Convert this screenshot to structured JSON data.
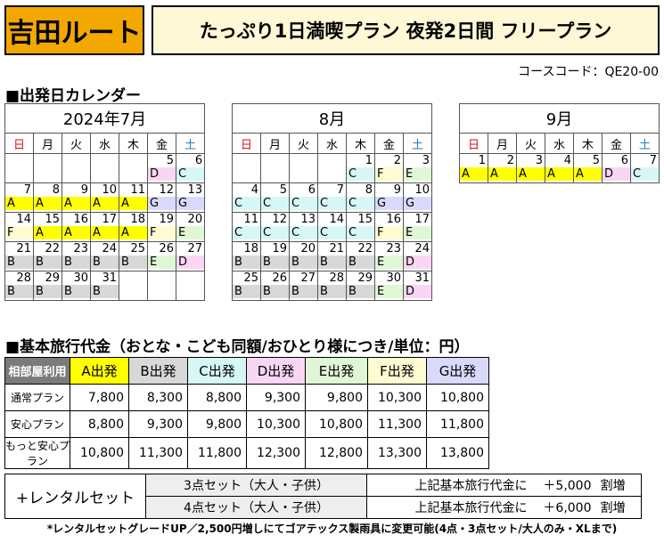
{
  "header": {
    "route": "吉田ルート",
    "plan_title": "たっぷり1日満喫プラン 夜発2日間 フリープラン",
    "course_code": "コースコード：QE20-00"
  },
  "calendar_heading": "■出発日カレンダー",
  "weekdays": [
    "日",
    "月",
    "火",
    "水",
    "木",
    "金",
    "土"
  ],
  "calendars": [
    {
      "title": "2024年7月",
      "weeks": [
        [
          {
            "d": "",
            "c": ""
          },
          {
            "d": "",
            "c": ""
          },
          {
            "d": "",
            "c": ""
          },
          {
            "d": "",
            "c": ""
          },
          {
            "d": "",
            "c": ""
          },
          {
            "d": "5",
            "c": "D"
          },
          {
            "d": "6",
            "c": "C"
          }
        ],
        [
          {
            "d": "7",
            "c": "A"
          },
          {
            "d": "8",
            "c": "A"
          },
          {
            "d": "9",
            "c": "A"
          },
          {
            "d": "10",
            "c": "A"
          },
          {
            "d": "11",
            "c": "A"
          },
          {
            "d": "12",
            "c": "G"
          },
          {
            "d": "13",
            "c": "G"
          }
        ],
        [
          {
            "d": "14",
            "c": "F"
          },
          {
            "d": "15",
            "c": "A"
          },
          {
            "d": "16",
            "c": "A"
          },
          {
            "d": "17",
            "c": "A"
          },
          {
            "d": "18",
            "c": "A"
          },
          {
            "d": "19",
            "c": "F"
          },
          {
            "d": "20",
            "c": "E"
          }
        ],
        [
          {
            "d": "21",
            "c": "B"
          },
          {
            "d": "22",
            "c": "B"
          },
          {
            "d": "23",
            "c": "B"
          },
          {
            "d": "24",
            "c": "B"
          },
          {
            "d": "25",
            "c": "B"
          },
          {
            "d": "26",
            "c": "E"
          },
          {
            "d": "27",
            "c": "D"
          }
        ],
        [
          {
            "d": "28",
            "c": "B"
          },
          {
            "d": "29",
            "c": "B"
          },
          {
            "d": "30",
            "c": "B"
          },
          {
            "d": "31",
            "c": "B"
          },
          {
            "d": "",
            "c": ""
          },
          {
            "d": "",
            "c": ""
          },
          {
            "d": "",
            "c": ""
          }
        ]
      ]
    },
    {
      "title": "8月",
      "weeks": [
        [
          {
            "d": "",
            "c": ""
          },
          {
            "d": "",
            "c": ""
          },
          {
            "d": "",
            "c": ""
          },
          {
            "d": "",
            "c": ""
          },
          {
            "d": "1",
            "c": "C"
          },
          {
            "d": "2",
            "c": "F"
          },
          {
            "d": "3",
            "c": "E"
          }
        ],
        [
          {
            "d": "4",
            "c": "C"
          },
          {
            "d": "5",
            "c": "C"
          },
          {
            "d": "6",
            "c": "C"
          },
          {
            "d": "7",
            "c": "C"
          },
          {
            "d": "8",
            "c": "C"
          },
          {
            "d": "9",
            "c": "G"
          },
          {
            "d": "10",
            "c": "G"
          }
        ],
        [
          {
            "d": "11",
            "c": "C"
          },
          {
            "d": "12",
            "c": "C"
          },
          {
            "d": "13",
            "c": "C"
          },
          {
            "d": "14",
            "c": "C"
          },
          {
            "d": "15",
            "c": "C"
          },
          {
            "d": "16",
            "c": "F"
          },
          {
            "d": "17",
            "c": "E"
          }
        ],
        [
          {
            "d": "18",
            "c": "B"
          },
          {
            "d": "19",
            "c": "B"
          },
          {
            "d": "20",
            "c": "B"
          },
          {
            "d": "21",
            "c": "B"
          },
          {
            "d": "22",
            "c": "B"
          },
          {
            "d": "23",
            "c": "E"
          },
          {
            "d": "24",
            "c": "D"
          }
        ],
        [
          {
            "d": "25",
            "c": "B"
          },
          {
            "d": "26",
            "c": "B"
          },
          {
            "d": "27",
            "c": "B"
          },
          {
            "d": "28",
            "c": "B"
          },
          {
            "d": "29",
            "c": "B"
          },
          {
            "d": "30",
            "c": "E"
          },
          {
            "d": "31",
            "c": "D"
          }
        ]
      ]
    },
    {
      "title": "9月",
      "weeks": [
        [
          {
            "d": "1",
            "c": "A"
          },
          {
            "d": "2",
            "c": "A"
          },
          {
            "d": "3",
            "c": "A"
          },
          {
            "d": "4",
            "c": "A"
          },
          {
            "d": "5",
            "c": "A"
          },
          {
            "d": "6",
            "c": "D"
          },
          {
            "d": "7",
            "c": "C"
          }
        ]
      ]
    }
  ],
  "price_heading": "■基本旅行代金（おとな・こども同額/おひとり様につき/単位：円）",
  "price_table": {
    "corner": "相部屋利用",
    "columns": [
      "A出発",
      "B出発",
      "C出発",
      "D出発",
      "E出発",
      "F出発",
      "G出発"
    ],
    "rows": [
      {
        "label": "通常プラン",
        "values": [
          "7,800",
          "8,300",
          "8,800",
          "9,300",
          "9,800",
          "10,300",
          "10,800"
        ]
      },
      {
        "label": "安心プラン",
        "values": [
          "8,800",
          "9,300",
          "9,800",
          "10,300",
          "10,800",
          "11,300",
          "11,800"
        ]
      },
      {
        "label": "もっと安心プラン",
        "values": [
          "10,800",
          "11,300",
          "11,800",
          "12,300",
          "12,800",
          "13,300",
          "13,800"
        ]
      }
    ]
  },
  "rental": {
    "title": "+レンタルセット",
    "rows": [
      {
        "set": "3点セット（大人・子供）",
        "desc": "上記基本旅行代金に",
        "amount": "＋5,000",
        "suffix": "割増"
      },
      {
        "set": "4点セット（大人・子供）",
        "desc": "上記基本旅行代金に",
        "amount": "＋6,000",
        "suffix": "割増"
      }
    ]
  },
  "footnote": "*レンタルセットグレードUP／2,500円増しにてゴアテックス製雨具に変更可能(4点・3点セット/大人のみ・XLまで)",
  "colors": {
    "route_badge": "#f2a800",
    "title_bg": "#fff8d6",
    "A": "#ffff00",
    "B": "#d8d8d8",
    "C": "#d6f7f5",
    "D": "#f9d7f4",
    "E": "#e0f7d6",
    "F": "#fffbd2",
    "G": "#d9dafb",
    "corner": "#7b7b7b",
    "sunday": "#d11111",
    "saturday": "#1a7fd1"
  }
}
